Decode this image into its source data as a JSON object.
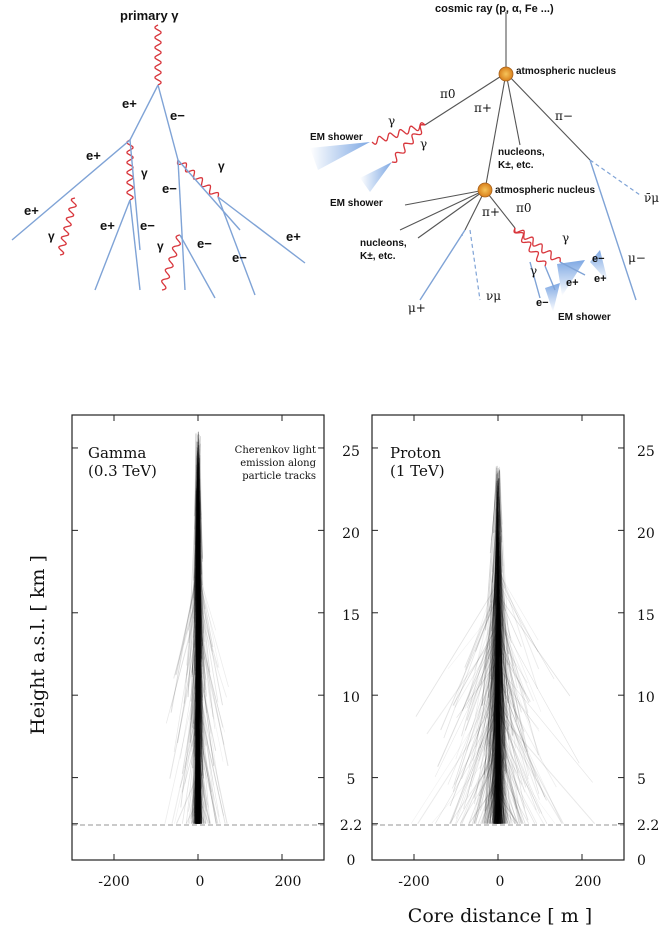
{
  "diagram_gamma": {
    "primary_label": "primary γ",
    "particles": {
      "e_plus": "e+",
      "e_minus": "e−",
      "gamma": "γ"
    }
  },
  "diagram_hadron": {
    "cosmic_ray_label": "cosmic ray (p, α, Fe ...)",
    "nucleus_label": "atmospheric nucleus",
    "em_shower_label": "EM shower",
    "nucleons_line1": "nucleons,",
    "nucleons_line2": "K±, etc.",
    "pi0": "π0",
    "pi_plus": "π+",
    "pi_minus": "π−",
    "mu_plus": "μ+",
    "mu_minus": "μ−",
    "nu_mu": "νμ",
    "nu_mu_bar": "ν̄μ"
  },
  "chart_data": [
    {
      "type": "scatter",
      "title": "Gamma",
      "subtitle": "(0.3 TeV)",
      "annotation": [
        "Cherenkov light",
        "emission along",
        "particle tracks"
      ],
      "xlabel": "Core distance [ m ]",
      "ylabel": "Height a.s.l. [ km ]",
      "xlim": [
        -300,
        300
      ],
      "ylim": [
        0,
        27
      ],
      "x_ticks": [
        -200,
        0,
        200
      ],
      "y_ticks": [
        0,
        2.2,
        5,
        10,
        15,
        20,
        25
      ],
      "y_tick_labels": [
        "0",
        "2.2",
        "5",
        "10",
        "15",
        "20",
        "25"
      ],
      "observation_level_km": 2.2
    },
    {
      "type": "scatter",
      "title": "Proton",
      "subtitle": "(1 TeV)",
      "xlabel": "Core distance [ m ]",
      "xlim": [
        -300,
        300
      ],
      "ylim": [
        0,
        27
      ],
      "x_ticks": [
        -200,
        0,
        200
      ],
      "y_ticks": [
        0,
        2.2,
        5,
        10,
        15,
        20,
        25
      ],
      "y_tick_labels": [
        "0",
        "2.2",
        "5",
        "10",
        "15",
        "20",
        "25"
      ],
      "observation_level_km": 2.2
    }
  ],
  "colors": {
    "electron_track": "#7fa3d6",
    "photon_track": "#d8363c",
    "hadron_track": "#555555",
    "nucleus": "#e89a2c",
    "axis": "#222222",
    "obs_level": "#aaaaaa"
  }
}
